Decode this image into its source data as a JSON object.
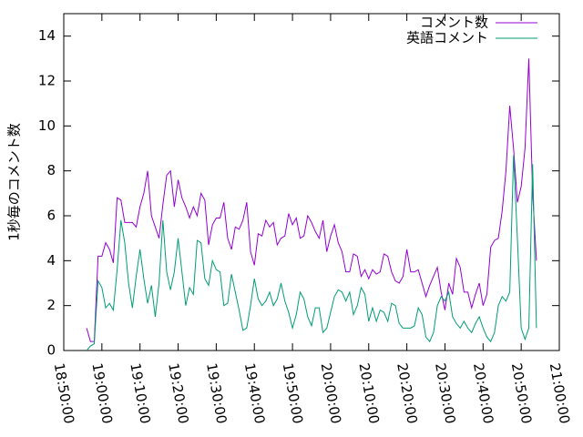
{
  "chart_data": {
    "type": "line",
    "y_label": "1秒毎のコメント数",
    "x": [
      "18:56:00",
      "18:57:00",
      "18:58:00",
      "18:59:00",
      "19:00:00",
      "19:01:00",
      "19:02:00",
      "19:03:00",
      "19:04:00",
      "19:05:00",
      "19:06:00",
      "19:07:00",
      "19:08:00",
      "19:09:00",
      "19:10:00",
      "19:11:00",
      "19:12:00",
      "19:13:00",
      "19:14:00",
      "19:15:00",
      "19:16:00",
      "19:17:00",
      "19:18:00",
      "19:19:00",
      "19:20:00",
      "19:21:00",
      "19:22:00",
      "19:23:00",
      "19:24:00",
      "19:25:00",
      "19:26:00",
      "19:27:00",
      "19:28:00",
      "19:29:00",
      "19:30:00",
      "19:31:00",
      "19:32:00",
      "19:33:00",
      "19:34:00",
      "19:35:00",
      "19:36:00",
      "19:37:00",
      "19:38:00",
      "19:39:00",
      "19:40:00",
      "19:41:00",
      "19:42:00",
      "19:43:00",
      "19:44:00",
      "19:45:00",
      "19:46:00",
      "19:47:00",
      "19:48:00",
      "19:49:00",
      "19:50:00",
      "19:51:00",
      "19:52:00",
      "19:53:00",
      "19:54:00",
      "19:55:00",
      "19:56:00",
      "19:57:00",
      "19:58:00",
      "19:59:00",
      "20:00:00",
      "20:01:00",
      "20:02:00",
      "20:03:00",
      "20:04:00",
      "20:05:00",
      "20:06:00",
      "20:07:00",
      "20:08:00",
      "20:09:00",
      "20:10:00",
      "20:11:00",
      "20:12:00",
      "20:13:00",
      "20:14:00",
      "20:15:00",
      "20:16:00",
      "20:17:00",
      "20:18:00",
      "20:19:00",
      "20:20:00",
      "20:21:00",
      "20:22:00",
      "20:23:00",
      "20:24:00",
      "20:25:00",
      "20:26:00",
      "20:27:00",
      "20:28:00",
      "20:29:00",
      "20:30:00",
      "20:31:00",
      "20:32:00",
      "20:33:00",
      "20:34:00",
      "20:35:00",
      "20:36:00",
      "20:37:00",
      "20:38:00",
      "20:39:00",
      "20:40:00",
      "20:41:00",
      "20:42:00",
      "20:43:00",
      "20:44:00",
      "20:45:00",
      "20:46:00",
      "20:47:00",
      "20:48:00",
      "20:49:00",
      "20:50:00",
      "20:51:00",
      "20:52:00",
      "20:53:00",
      "20:54:00"
    ],
    "series": [
      {
        "name": "コメント数",
        "color": "#9400d3",
        "values": [
          1.0,
          0.4,
          0.4,
          4.2,
          4.2,
          4.8,
          4.5,
          3.9,
          6.8,
          6.7,
          5.7,
          5.7,
          5.7,
          5.5,
          6.4,
          7.0,
          8.0,
          6.0,
          5.5,
          5.0,
          6.5,
          7.8,
          8.0,
          6.4,
          7.6,
          6.8,
          6.4,
          5.9,
          6.4,
          6.0,
          7.0,
          6.7,
          4.7,
          5.6,
          5.9,
          5.9,
          6.6,
          5.0,
          4.5,
          5.5,
          5.4,
          5.8,
          6.6,
          4.4,
          3.8,
          5.2,
          5.1,
          5.8,
          5.5,
          5.7,
          4.7,
          5.0,
          5.1,
          6.1,
          5.6,
          5.9,
          5.0,
          5.1,
          6.0,
          5.7,
          5.3,
          5.0,
          5.8,
          4.4,
          5.1,
          5.6,
          4.8,
          4.4,
          3.5,
          3.5,
          4.3,
          4.2,
          3.3,
          3.6,
          3.2,
          3.6,
          3.4,
          3.5,
          4.3,
          4.2,
          3.5,
          3.1,
          3.0,
          3.3,
          4.5,
          3.5,
          3.5,
          3.6,
          3.0,
          2.4,
          2.9,
          3.3,
          3.7,
          2.6,
          1.8,
          3.0,
          2.5,
          4.1,
          3.7,
          2.6,
          2.6,
          1.9,
          2.5,
          3.0,
          2.0,
          2.5,
          4.6,
          4.9,
          5.0,
          6.2,
          8.0,
          10.9,
          9.0,
          6.6,
          7.3,
          9.0,
          13.0,
          7.0,
          4.0
        ]
      },
      {
        "name": "英語コメント",
        "color": "#009e73",
        "values": [
          0,
          0.2,
          0.3,
          3.1,
          2.8,
          1.9,
          2.1,
          1.8,
          3.6,
          5.8,
          4.8,
          3.0,
          1.9,
          3.3,
          4.5,
          3.2,
          2.1,
          2.9,
          1.5,
          3.0,
          5.8,
          3.5,
          2.7,
          3.5,
          5.0,
          3.5,
          2.0,
          2.8,
          2.5,
          4.9,
          4.8,
          3.2,
          2.9,
          4.0,
          3.6,
          3.5,
          2.0,
          2.1,
          3.4,
          2.6,
          1.8,
          0.9,
          1.0,
          2.0,
          3.2,
          2.3,
          2.0,
          2.2,
          2.6,
          2.0,
          2.3,
          3.0,
          2.2,
          1.7,
          1.0,
          1.6,
          2.6,
          2.3,
          1.5,
          1.1,
          1.9,
          1.9,
          0.8,
          1.0,
          1.7,
          2.4,
          2.7,
          2.6,
          2.2,
          2.6,
          1.6,
          2.0,
          2.8,
          2.5,
          1.3,
          1.9,
          1.3,
          1.8,
          1.7,
          1.3,
          2.1,
          2.0,
          1.2,
          1.0,
          1.0,
          1.0,
          1.1,
          1.9,
          1.6,
          0.6,
          0.4,
          0.8,
          2.0,
          2.4,
          2.2,
          2.6,
          1.5,
          1.2,
          1.0,
          1.3,
          1.0,
          0.8,
          1.2,
          1.5,
          1.0,
          0.6,
          0.4,
          0.8,
          2.0,
          2.4,
          2.2,
          2.6,
          8.7,
          5.0,
          1.0,
          0.5,
          1.0,
          8.3,
          1.0
        ]
      }
    ],
    "xlim": [
      "18:50:00",
      "21:00:00"
    ],
    "xticks": [
      "18:50:00",
      "19:00:00",
      "19:10:00",
      "19:20:00",
      "19:30:00",
      "19:40:00",
      "19:50:00",
      "20:00:00",
      "20:10:00",
      "20:20:00",
      "20:30:00",
      "20:40:00",
      "20:50:00",
      "21:00:00"
    ],
    "ylim": [
      0,
      15
    ],
    "yticks": [
      0,
      2,
      4,
      6,
      8,
      10,
      12,
      14
    ],
    "legend": "top-right"
  }
}
